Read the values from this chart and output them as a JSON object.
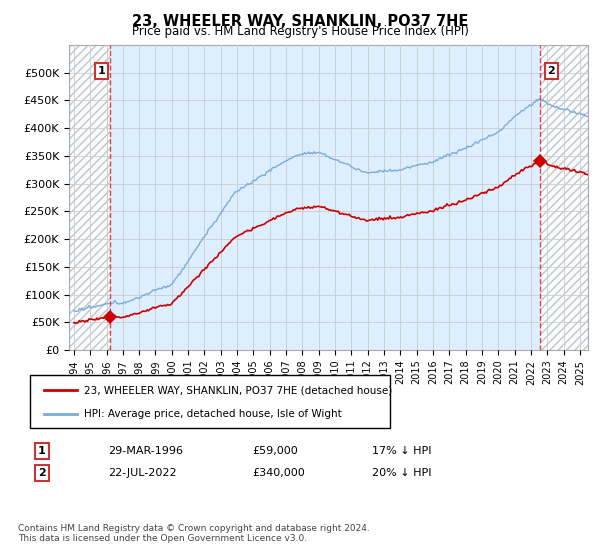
{
  "title": "23, WHEELER WAY, SHANKLIN, PO37 7HE",
  "subtitle": "Price paid vs. HM Land Registry's House Price Index (HPI)",
  "ylim": [
    0,
    550000
  ],
  "yticks": [
    0,
    50000,
    100000,
    150000,
    200000,
    250000,
    300000,
    350000,
    400000,
    450000,
    500000
  ],
  "ytick_labels": [
    "£0",
    "£50K",
    "£100K",
    "£150K",
    "£200K",
    "£250K",
    "£300K",
    "£350K",
    "£400K",
    "£450K",
    "£500K"
  ],
  "xlim_start": 1993.7,
  "xlim_end": 2025.5,
  "purchase1_x": 1996.24,
  "purchase1_y": 59000,
  "purchase1_label": "1",
  "purchase1_date": "29-MAR-1996",
  "purchase1_price": "£59,000",
  "purchase1_hpi": "17% ↓ HPI",
  "purchase2_x": 2022.55,
  "purchase2_y": 340000,
  "purchase2_label": "2",
  "purchase2_date": "22-JUL-2022",
  "purchase2_price": "£340,000",
  "purchase2_hpi": "20% ↓ HPI",
  "line_color_property": "#cc0000",
  "line_color_hpi": "#7aaddc",
  "grid_color": "#cccccc",
  "bg_color": "#ddeeff",
  "legend_label1": "23, WHEELER WAY, SHANKLIN, PO37 7HE (detached house)",
  "legend_label2": "HPI: Average price, detached house, Isle of Wight",
  "footer": "Contains HM Land Registry data © Crown copyright and database right 2024.\nThis data is licensed under the Open Government Licence v3.0."
}
